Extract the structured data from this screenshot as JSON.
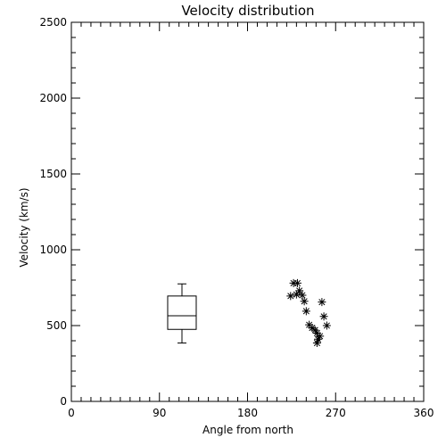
{
  "chart_data": {
    "type": "scatter",
    "title": "Velocity distribution",
    "xlabel": "Angle from north",
    "ylabel": "Velocity (km/s)",
    "xlim": [
      0,
      360
    ],
    "ylim": [
      0,
      2500
    ],
    "xticks": [
      0,
      90,
      180,
      270,
      360
    ],
    "yticks": [
      0,
      500,
      1000,
      1500,
      2000,
      2500
    ],
    "grid": false,
    "boxplot": {
      "x": 113,
      "whisker_low": 385,
      "q1": 475,
      "median": 565,
      "q3": 695,
      "whisker_high": 775
    },
    "points": [
      {
        "x": 227,
        "y": 780
      },
      {
        "x": 231,
        "y": 780
      },
      {
        "x": 233,
        "y": 730
      },
      {
        "x": 230,
        "y": 705
      },
      {
        "x": 224,
        "y": 695
      },
      {
        "x": 236,
        "y": 700
      },
      {
        "x": 238,
        "y": 660
      },
      {
        "x": 240,
        "y": 595
      },
      {
        "x": 243,
        "y": 505
      },
      {
        "x": 246,
        "y": 485
      },
      {
        "x": 249,
        "y": 470
      },
      {
        "x": 251,
        "y": 450
      },
      {
        "x": 254,
        "y": 430
      },
      {
        "x": 252,
        "y": 410
      },
      {
        "x": 251,
        "y": 385
      },
      {
        "x": 256,
        "y": 655
      },
      {
        "x": 258,
        "y": 560
      },
      {
        "x": 261,
        "y": 500
      }
    ]
  }
}
